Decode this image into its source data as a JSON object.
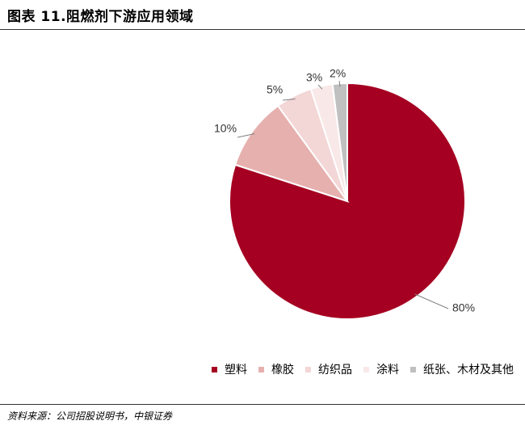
{
  "figure": {
    "title": "图表 11.阻燃剂下游应用领域",
    "source": "资料来源：公司招股说明书，中银证券"
  },
  "chart_data": {
    "type": "pie",
    "title": "",
    "labels": [
      "塑料",
      "橡胶",
      "纺织品",
      "涂料",
      "纸张、木材及其他"
    ],
    "values": [
      80,
      10,
      5,
      3,
      2
    ],
    "data_labels": [
      "80%",
      "10%",
      "5%",
      "3%",
      "2%"
    ],
    "colors": [
      "#a50021",
      "#e6b0ae",
      "#f3d6d6",
      "#f8e8e8",
      "#c0c0c0"
    ],
    "start_angle": "12 o'clock",
    "direction": "clockwise",
    "legend": {
      "position": "bottom-right"
    }
  }
}
